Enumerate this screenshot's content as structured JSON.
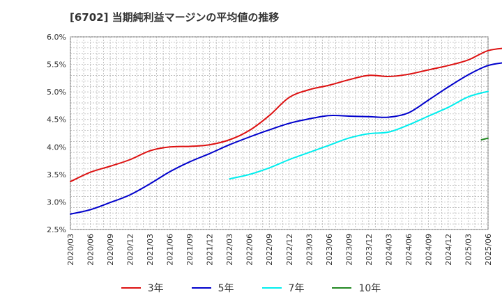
{
  "chart_data": {
    "type": "line",
    "title": "[6702]  当期純利益マージンの平均値の推移",
    "xlabel": "",
    "ylabel": "",
    "ylim": [
      2.5,
      6.0
    ],
    "grid": true,
    "legend_placement": "bottom",
    "y_ticks": [
      "2.5%",
      "3.0%",
      "3.5%",
      "4.0%",
      "4.5%",
      "5.0%",
      "5.5%",
      "6.0%"
    ],
    "x_ticks": [
      "2020/03",
      "2020/06",
      "2020/09",
      "2020/12",
      "2021/03",
      "2021/06",
      "2021/09",
      "2021/12",
      "2022/03",
      "2022/06",
      "2022/09",
      "2022/12",
      "2023/03",
      "2023/06",
      "2023/09",
      "2023/12",
      "2024/03",
      "2024/06",
      "2024/09",
      "2024/12",
      "2025/03",
      "2025/06"
    ],
    "series": [
      {
        "name": "3年",
        "color": "#dd1111",
        "values": [
          3.37,
          3.54,
          3.65,
          3.77,
          3.93,
          4.0,
          4.01,
          4.04,
          4.13,
          4.3,
          4.57,
          4.9,
          5.04,
          5.12,
          5.22,
          5.3,
          5.28,
          5.32,
          5.4,
          5.48,
          5.58,
          5.75,
          5.8
        ]
      },
      {
        "name": "5年",
        "color": "#0000cc",
        "values": [
          2.78,
          2.86,
          2.99,
          3.13,
          3.33,
          3.55,
          3.73,
          3.88,
          4.04,
          4.18,
          4.31,
          4.43,
          4.51,
          4.57,
          4.56,
          4.55,
          4.54,
          4.62,
          4.85,
          5.09,
          5.31,
          5.48,
          5.54
        ]
      },
      {
        "name": "7年",
        "color": "#00eeee",
        "x_start_index": 8,
        "values": [
          3.42,
          3.5,
          3.62,
          3.77,
          3.9,
          4.03,
          4.16,
          4.24,
          4.27,
          4.4,
          4.56,
          4.72,
          4.91,
          5.01
        ]
      },
      {
        "name": "10年",
        "color": "#228822",
        "x_start_index": 20.667,
        "values": [
          4.13,
          4.16
        ]
      }
    ]
  }
}
